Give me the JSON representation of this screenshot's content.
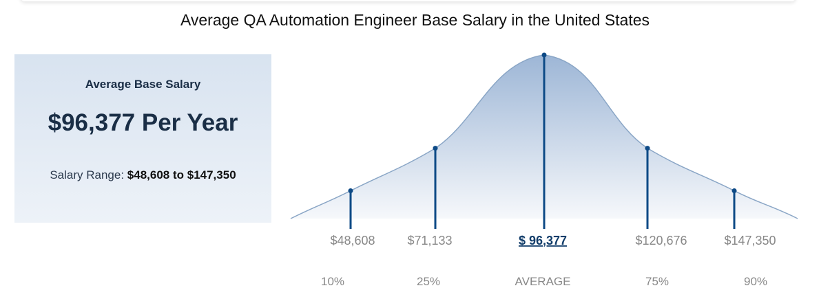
{
  "title": "Average QA Automation Engineer Base Salary in the United States",
  "card": {
    "label": "Average Base Salary",
    "value": "$96,377 Per Year",
    "range_label": "Salary Range:",
    "range_value": "$48,608 to $147,350"
  },
  "colors": {
    "accent": "#0d4a86",
    "curve_fill_top": "#9db6d6",
    "curve_fill_bottom": "#f6f8fb",
    "curve_stroke": "#8aa6c6",
    "muted_text": "#888888",
    "card_bg": "#dde7f2"
  },
  "chart_data": {
    "type": "area",
    "title": "Average QA Automation Engineer Base Salary in the United States",
    "markers": [
      {
        "label": "$48,608",
        "percentile": "10%",
        "value": 48608,
        "relative_height": 0.17
      },
      {
        "label": "$71,133",
        "percentile": "25%",
        "value": 71133,
        "relative_height": 0.43
      },
      {
        "label": "$ 96,377",
        "percentile": "AVERAGE",
        "value": 96377,
        "relative_height": 1.0,
        "is_average": true
      },
      {
        "label": "$120,676",
        "percentile": "75%",
        "value": 120676,
        "relative_height": 0.43
      },
      {
        "label": "$147,350",
        "percentile": "90%",
        "value": 147350,
        "relative_height": 0.17
      }
    ]
  }
}
